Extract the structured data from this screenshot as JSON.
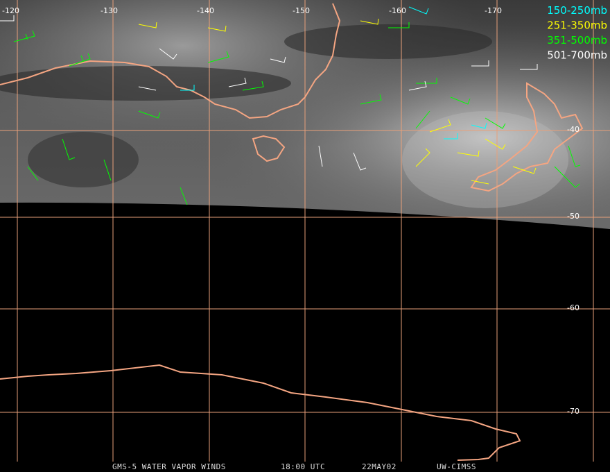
{
  "map": {
    "longitude_labels": [
      "-120",
      "-130",
      "-140",
      "-150",
      "-160",
      "-170"
    ],
    "latitude_labels": [
      "-40",
      "-50",
      "-60",
      "-70"
    ],
    "legend": [
      {
        "label": "150-250mb",
        "color": "#00ffff"
      },
      {
        "label": "251-350mb",
        "color": "#ffff00"
      },
      {
        "label": "351-500mb",
        "color": "#00ff00"
      },
      {
        "label": "501-700mb",
        "color": "#ffffff"
      }
    ],
    "footer": [
      "GMS-5 WATER VAPOR WINDS",
      "18:00 UTC",
      "22MAY02",
      "UW-CIMSS"
    ]
  }
}
